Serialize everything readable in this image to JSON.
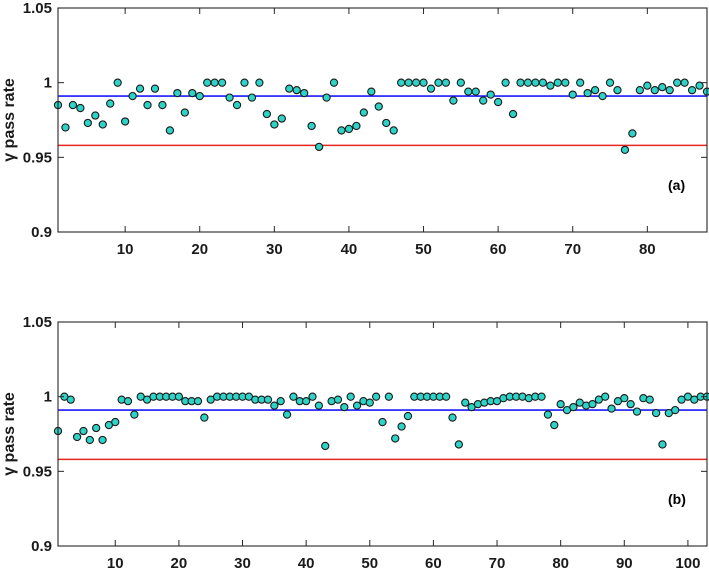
{
  "chart_data": [
    {
      "type": "scatter",
      "panel_label": "(a)",
      "ylabel": "γ pass rate",
      "xlim": [
        1,
        88
      ],
      "ylim": [
        0.9,
        1.05
      ],
      "xticks": [
        "10",
        "20",
        "30",
        "40",
        "50",
        "60",
        "70",
        "80"
      ],
      "yticks": [
        "0.9",
        "0.95",
        "1",
        "1.05"
      ],
      "grid": false,
      "reference_lines": [
        {
          "y": 0.991,
          "color": "#1a1aff"
        },
        {
          "y": 0.958,
          "color": "#e8251f"
        }
      ],
      "marker_fill": "#2ed3c8",
      "marker_edge": "#1a1a1a",
      "series": [
        {
          "x": [
            1,
            2,
            3,
            4,
            5,
            6,
            7,
            8,
            9,
            10,
            11,
            12,
            13,
            14,
            15,
            16,
            17,
            18,
            19,
            20,
            21,
            22,
            23,
            24,
            25,
            26,
            27,
            28,
            29,
            30,
            31,
            32,
            33,
            34,
            35,
            36,
            37,
            38,
            39,
            40,
            41,
            42,
            43,
            44,
            45,
            46,
            47,
            48,
            49,
            50,
            51,
            52,
            53,
            54,
            55,
            56,
            57,
            58,
            59,
            60,
            61,
            62,
            63,
            64,
            65,
            66,
            67,
            68,
            69,
            70,
            71,
            72,
            73,
            74,
            75,
            76,
            77,
            78,
            79,
            80,
            81,
            82,
            83,
            84,
            85,
            86,
            87,
            88
          ],
          "values": [
            0.985,
            0.97,
            0.985,
            0.983,
            0.973,
            0.978,
            0.972,
            0.986,
            1.0,
            0.974,
            0.991,
            0.996,
            0.985,
            0.996,
            0.985,
            0.968,
            0.993,
            0.98,
            0.993,
            0.991,
            1.0,
            1.0,
            1.0,
            0.99,
            0.985,
            1.0,
            0.99,
            1.0,
            0.979,
            0.972,
            0.976,
            0.996,
            0.995,
            0.993,
            0.971,
            0.957,
            0.99,
            1.0,
            0.968,
            0.969,
            0.971,
            0.98,
            0.994,
            0.984,
            0.973,
            0.968,
            1.0,
            1.0,
            1.0,
            1.0,
            0.996,
            1.0,
            1.0,
            0.988,
            1.0,
            0.994,
            0.994,
            0.988,
            0.992,
            0.987,
            1.0,
            0.979,
            1.0,
            1.0,
            1.0,
            1.0,
            0.998,
            1.0,
            1.0,
            0.992,
            1.0,
            0.993,
            0.995,
            0.991,
            1.0,
            0.995,
            0.955,
            0.966,
            0.995,
            0.998,
            0.995,
            0.997,
            0.995,
            1.0,
            1.0,
            0.995,
            0.998,
            0.994
          ]
        }
      ]
    },
    {
      "type": "scatter",
      "panel_label": "(b)",
      "ylabel": "γ pass rate",
      "xlim": [
        1,
        103
      ],
      "ylim": [
        0.9,
        1.05
      ],
      "xticks": [
        "10",
        "20",
        "30",
        "40",
        "50",
        "60",
        "70",
        "80",
        "90",
        "100"
      ],
      "yticks": [
        "0.9",
        "0.95",
        "1",
        "1.05"
      ],
      "grid": false,
      "reference_lines": [
        {
          "y": 0.991,
          "color": "#1a1aff"
        },
        {
          "y": 0.958,
          "color": "#e8251f"
        }
      ],
      "marker_fill": "#2ed3c8",
      "marker_edge": "#1a1a1a",
      "series": [
        {
          "x": [
            1,
            2,
            3,
            4,
            5,
            6,
            7,
            8,
            9,
            10,
            11,
            12,
            13,
            14,
            15,
            16,
            17,
            18,
            19,
            20,
            21,
            22,
            23,
            24,
            25,
            26,
            27,
            28,
            29,
            30,
            31,
            32,
            33,
            34,
            35,
            36,
            37,
            38,
            39,
            40,
            41,
            42,
            43,
            44,
            45,
            46,
            47,
            48,
            49,
            50,
            51,
            52,
            53,
            54,
            55,
            56,
            57,
            58,
            59,
            60,
            61,
            62,
            63,
            64,
            65,
            66,
            67,
            68,
            69,
            70,
            71,
            72,
            73,
            74,
            75,
            76,
            77,
            78,
            79,
            80,
            81,
            82,
            83,
            84,
            85,
            86,
            87,
            88,
            89,
            90,
            91,
            92,
            93,
            94,
            95,
            96,
            97,
            98,
            99,
            100,
            101,
            102,
            103
          ],
          "values": [
            0.977,
            1.0,
            0.998,
            0.973,
            0.977,
            0.971,
            0.979,
            0.971,
            0.981,
            0.983,
            0.998,
            0.997,
            0.988,
            1.0,
            0.998,
            1.0,
            1.0,
            1.0,
            1.0,
            1.0,
            0.997,
            0.997,
            0.997,
            0.986,
            0.998,
            1.0,
            1.0,
            1.0,
            1.0,
            1.0,
            1.0,
            0.998,
            0.998,
            0.998,
            0.994,
            0.997,
            0.988,
            1.0,
            0.997,
            0.997,
            1.0,
            0.994,
            0.967,
            0.997,
            0.998,
            0.993,
            1.0,
            0.994,
            0.997,
            0.996,
            1.0,
            0.983,
            1.0,
            0.972,
            0.98,
            0.987,
            1.0,
            1.0,
            1.0,
            1.0,
            1.0,
            1.0,
            0.986,
            0.968,
            0.996,
            0.993,
            0.995,
            0.996,
            0.997,
            0.997,
            0.999,
            1.0,
            1.0,
            1.0,
            0.999,
            1.0,
            1.0,
            0.988,
            0.981,
            0.995,
            0.991,
            0.993,
            0.996,
            0.994,
            0.995,
            0.998,
            1.0,
            0.992,
            0.997,
            0.999,
            0.995,
            0.99,
            0.999,
            0.998,
            0.989,
            0.968,
            0.989,
            0.991,
            0.998,
            1.0,
            0.998,
            1.0,
            1.0
          ]
        }
      ]
    }
  ]
}
